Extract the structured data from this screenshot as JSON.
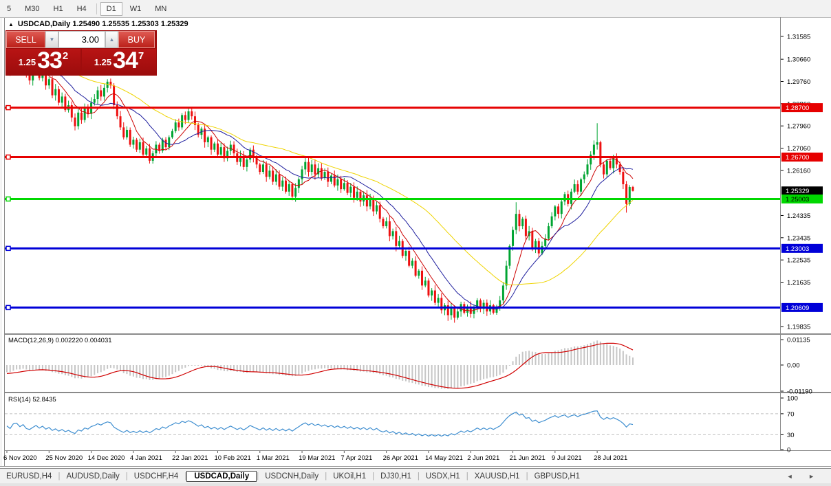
{
  "toolbar": {
    "items": [
      {
        "label": "5",
        "active": false
      },
      {
        "label": "M30",
        "active": false
      },
      {
        "label": "H1",
        "active": false
      },
      {
        "label": "H4",
        "active": false
      },
      {
        "label": "|",
        "separator": true
      },
      {
        "label": "D1",
        "active": true
      },
      {
        "label": "W1",
        "active": false
      },
      {
        "label": "MN",
        "active": false
      }
    ]
  },
  "chart_header": {
    "collapse_icon": "▲",
    "title": "USDCAD,Daily  1.25490 1.25535 1.25303 1.25329"
  },
  "trade_panel": {
    "sell_label": "SELL",
    "buy_label": "BUY",
    "volume": "3.00",
    "vol_down_icon": "▼",
    "vol_up_icon": "▲",
    "sell_price": {
      "small": "1.25",
      "big": "33",
      "sup": "2"
    },
    "buy_price": {
      "small": "1.25",
      "big": "34",
      "sup": "7"
    }
  },
  "chart_data": {
    "type": "candlestick",
    "symbol": "USDCAD",
    "timeframe": "Daily",
    "ohlc_display": {
      "open": "1.25490",
      "high": "1.25535",
      "low": "1.25303",
      "close": "1.25329"
    },
    "price_range": {
      "top": 1.32,
      "bottom": 1.1959
    },
    "price_ticks": [
      "1.31585",
      "1.30660",
      "1.29760",
      "1.28860",
      "1.27960",
      "1.27060",
      "1.26160",
      "1.24335",
      "1.23435",
      "1.22535",
      "1.21635",
      "1.19835"
    ],
    "date_labels": [
      "6 Nov 2020",
      "25 Nov 2020",
      "14 Dec 2020",
      "4 Jan 2021",
      "22 Jan 2021",
      "10 Feb 2021",
      "1 Mar 2021",
      "19 Mar 2021",
      "7 Apr 2021",
      "26 Apr 2021",
      "14 May 2021",
      "2 Jun 2021",
      "21 Jun 2021",
      "9 Jul 2021",
      "28 Jul 2021"
    ],
    "date_label_bar_step": 13,
    "first_open": 1.303,
    "closes": [
      1.306,
      1.302,
      1.3085,
      1.3095,
      1.304,
      1.307,
      1.3,
      1.298,
      1.301,
      1.304,
      1.299,
      1.302,
      1.296,
      1.2985,
      1.292,
      1.2945,
      1.289,
      1.2915,
      1.286,
      1.288,
      1.283,
      1.2795,
      1.285,
      1.282,
      1.287,
      1.2845,
      1.289,
      1.2905,
      1.294,
      1.2915,
      1.295,
      1.2975,
      1.296,
      1.288,
      1.2835,
      1.279,
      1.275,
      1.278,
      1.272,
      1.274,
      1.27,
      1.273,
      1.268,
      1.2705,
      1.2655,
      1.2685,
      1.272,
      1.2695,
      1.274,
      1.271,
      1.275,
      1.2775,
      1.281,
      1.279,
      1.284,
      1.282,
      1.2855,
      1.2835,
      1.28,
      1.276,
      1.2785,
      1.273,
      1.275,
      1.27,
      1.2725,
      1.268,
      1.271,
      1.2665,
      1.2695,
      1.272,
      1.2685,
      1.265,
      1.2675,
      1.263,
      1.266,
      1.27,
      1.267,
      1.264,
      1.261,
      1.264,
      1.259,
      1.2615,
      1.257,
      1.26,
      1.255,
      1.2575,
      1.253,
      1.256,
      1.251,
      1.2545,
      1.258,
      1.262,
      1.265,
      1.261,
      1.264,
      1.26,
      1.2625,
      1.2585,
      1.261,
      1.257,
      1.2595,
      1.2555,
      1.258,
      1.254,
      1.2565,
      1.2525,
      1.255,
      1.2505,
      1.253,
      1.249,
      1.2515,
      1.247,
      1.25,
      1.245,
      1.2475,
      1.242,
      1.239,
      1.241,
      1.235,
      1.237,
      1.231,
      1.233,
      1.227,
      1.229,
      1.223,
      1.225,
      1.219,
      1.221,
      1.215,
      1.217,
      1.211,
      1.213,
      1.208,
      1.21,
      1.205,
      1.207,
      1.203,
      1.206,
      1.202,
      1.2045,
      1.2075,
      1.204,
      1.2065,
      1.2035,
      1.206,
      1.209,
      1.2055,
      1.208,
      1.2045,
      1.207,
      1.204,
      1.2065,
      1.209,
      1.215,
      1.223,
      1.231,
      1.2375,
      1.244,
      1.239,
      1.242,
      1.235,
      1.237,
      1.23,
      1.233,
      1.228,
      1.231,
      1.234,
      1.239,
      1.243,
      1.247,
      1.244,
      1.249,
      1.252,
      1.248,
      1.253,
      1.256,
      1.253,
      1.258,
      1.26,
      1.264,
      1.268,
      1.272,
      1.273,
      1.264,
      1.26,
      1.2655,
      1.2625,
      1.2665,
      1.264,
      1.261,
      1.256,
      1.248,
      1.2549,
      1.2533
    ],
    "prehistory_closes": [
      1.329,
      1.327,
      1.3295,
      1.3255,
      1.3275,
      1.324,
      1.326,
      1.3225,
      1.3245,
      1.321,
      1.323,
      1.3195,
      1.3215,
      1.318,
      1.32,
      1.3165,
      1.3185,
      1.315,
      1.317,
      1.3135,
      1.3155,
      1.312,
      1.314,
      1.3105,
      1.3125,
      1.309,
      1.311,
      1.3085,
      1.31,
      1.307,
      1.309,
      1.306,
      1.308,
      1.305,
      1.307,
      1.304,
      1.306,
      1.303,
      1.305,
      1.302,
      1.3045,
      1.3015,
      1.304,
      1.301,
      1.303
    ],
    "wick_overrides": {
      "1": {
        "high": 1.3165
      },
      "31": {
        "high": 1.2985
      },
      "56": {
        "high": 1.2872
      },
      "88": {
        "low": 1.2495
      },
      "136": {
        "low": 1.2007
      },
      "139": {
        "low": 1.2012
      },
      "157": {
        "high": 1.2487
      },
      "182": {
        "high": 1.2807
      },
      "191": {
        "low": 1.2445
      },
      "193": {
        "high": 1.25535,
        "low": 1.25303
      }
    },
    "moving_averages": [
      {
        "name": "ma-fast",
        "period": 8,
        "color": "#cc0000"
      },
      {
        "name": "ma-medium",
        "period": 16,
        "color": "#1f1f9e"
      },
      {
        "name": "ma-slow",
        "period": 40,
        "color": "#efd400"
      }
    ],
    "hlines": [
      {
        "price": 1.287,
        "label": "1.28700",
        "color": "#e60000",
        "text_color": "#ffffff"
      },
      {
        "price": 1.267,
        "label": "1.26700",
        "color": "#e60000",
        "text_color": "#ffffff"
      },
      {
        "price": 1.25003,
        "label": "1.25003",
        "color": "#00d800",
        "text_color": "#000000"
      },
      {
        "price": 1.23003,
        "label": "1.23003",
        "color": "#0000d8",
        "text_color": "#ffffff"
      },
      {
        "price": 1.20609,
        "label": "1.20609",
        "color": "#0000d8",
        "text_color": "#ffffff"
      }
    ],
    "current_price_label": {
      "price": 1.25329,
      "label": "1.25329",
      "bg": "#000000",
      "text_color": "#ffffff"
    },
    "macd": {
      "label": "MACD(12,26,9) 0.002220 0.004031",
      "params": [
        12,
        26,
        9
      ],
      "values_display": [
        "0.002220",
        "0.004031"
      ],
      "ticks": [
        {
          "text": "0.01135",
          "v": 0.01135
        },
        {
          "text": "0.00",
          "v": 0
        },
        {
          "text": "-0.01190",
          "v": -0.0119
        }
      ],
      "hist_color": "#c6c6c6",
      "signal_color": "#d00000"
    },
    "rsi": {
      "label": "RSI(14) 52.8435",
      "period": 14,
      "value_display": "52.8435",
      "ticks": [
        {
          "text": "100",
          "v": 100
        },
        {
          "text": "70",
          "v": 70
        },
        {
          "text": "30",
          "v": 30
        },
        {
          "text": "0",
          "v": 0
        }
      ],
      "levels": [
        70,
        30
      ],
      "color": "#3e8ed0",
      "level_color": "#c0c0c0"
    },
    "colors": {
      "bull": "#00a432",
      "bear": "#ee1010",
      "frame": "#8a8a8a",
      "axis_text": "#000000"
    }
  },
  "tabs": {
    "separator": "|",
    "scroll_left": "◄",
    "scroll_right": "►",
    "items": [
      {
        "label": "EURUSD,H4",
        "active": false
      },
      {
        "label": "AUDUSD,Daily",
        "active": false
      },
      {
        "label": "USDCHF,H4",
        "active": false
      },
      {
        "label": "USDCAD,Daily",
        "active": true
      },
      {
        "label": "USDCNH,Daily",
        "active": false
      },
      {
        "label": "UKOil,H1",
        "active": false
      },
      {
        "label": "DJ30,H1",
        "active": false
      },
      {
        "label": "USDX,H1",
        "active": false
      },
      {
        "label": "XAUUSD,H1",
        "active": false
      },
      {
        "label": "GBPUSD,H1",
        "active": false
      }
    ]
  }
}
